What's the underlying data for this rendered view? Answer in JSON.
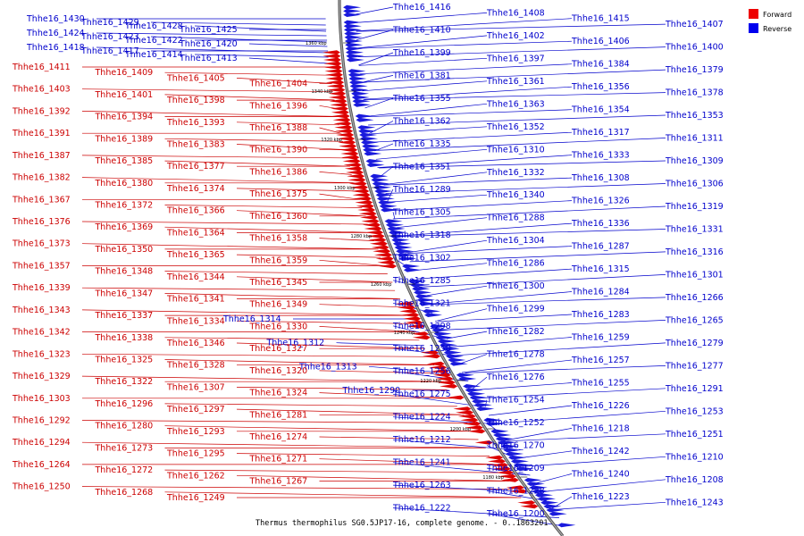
{
  "caption": "Thermus thermophilus SG0.5JP17-16, complete genome. - 0..1863201",
  "legend": [
    {
      "label": "Forward",
      "color": "#ee0000"
    },
    {
      "label": "Reverse",
      "color": "#0000ee"
    }
  ],
  "colors": {
    "forward": "#cc0000",
    "reverse": "#0000cc",
    "backbone": "#888888"
  },
  "ticks": [
    "1360 kbp",
    "1340 kbp",
    "1320 kbp",
    "1300 kbp",
    "1280 kbp",
    "1260 kbp",
    "1240 kbp",
    "1220 kbp",
    "1200 kbp",
    "1180 kbp"
  ],
  "genes_left_blue": [
    "Thhe16_1430",
    "Thhe16_1429",
    "Thhe16_1428",
    "Thhe16_1425",
    "Thhe16_1424",
    "Thhe16_1423",
    "Thhe16_1422",
    "Thhe16_1420",
    "Thhe16_1418",
    "Thhe16_1417",
    "Thhe16_1414",
    "Thhe16_1413",
    "Thhe16_1314",
    "Thhe16_1312",
    "Thhe16_1313",
    "Thhe16_1290"
  ],
  "genes_left_red": [
    "Thhe16_1411",
    "Thhe16_1409",
    "Thhe16_1405",
    "Thhe16_1404",
    "Thhe16_1403",
    "Thhe16_1401",
    "Thhe16_1398",
    "Thhe16_1396",
    "Thhe16_1392",
    "Thhe16_1394",
    "Thhe16_1393",
    "Thhe16_1388",
    "Thhe16_1391",
    "Thhe16_1389",
    "Thhe16_1383",
    "Thhe16_1390",
    "Thhe16_1387",
    "Thhe16_1385",
    "Thhe16_1377",
    "Thhe16_1386",
    "Thhe16_1382",
    "Thhe16_1380",
    "Thhe16_1374",
    "Thhe16_1375",
    "Thhe16_1367",
    "Thhe16_1372",
    "Thhe16_1366",
    "Thhe16_1360",
    "Thhe16_1376",
    "Thhe16_1369",
    "Thhe16_1364",
    "Thhe16_1358",
    "Thhe16_1373",
    "Thhe16_1350",
    "Thhe16_1365",
    "Thhe16_1359",
    "Thhe16_1357",
    "Thhe16_1348",
    "Thhe16_1344",
    "Thhe16_1345",
    "Thhe16_1339",
    "Thhe16_1347",
    "Thhe16_1341",
    "Thhe16_1349",
    "Thhe16_1343",
    "Thhe16_1337",
    "Thhe16_1334",
    "Thhe16_1330",
    "Thhe16_1342",
    "Thhe16_1338",
    "Thhe16_1346",
    "Thhe16_1327",
    "Thhe16_1323",
    "Thhe16_1325",
    "Thhe16_1328",
    "Thhe16_1320",
    "Thhe16_1329",
    "Thhe16_1322",
    "Thhe16_1307",
    "Thhe16_1324",
    "Thhe16_1303",
    "Thhe16_1296",
    "Thhe16_1297",
    "Thhe16_1281",
    "Thhe16_1292",
    "Thhe16_1280",
    "Thhe16_1293",
    "Thhe16_1274",
    "Thhe16_1294",
    "Thhe16_1273",
    "Thhe16_1295",
    "Thhe16_1271",
    "Thhe16_1264",
    "Thhe16_1272",
    "Thhe16_1262",
    "Thhe16_1267",
    "Thhe16_1250",
    "Thhe16_1268",
    "Thhe16_1249"
  ],
  "genes_right_blue": [
    "Thhe16_1416",
    "Thhe16_1408",
    "Thhe16_1415",
    "Thhe16_1407",
    "Thhe16_1410",
    "Thhe16_1402",
    "Thhe16_1406",
    "Thhe16_1400",
    "Thhe16_1399",
    "Thhe16_1397",
    "Thhe16_1384",
    "Thhe16_1379",
    "Thhe16_1381",
    "Thhe16_1361",
    "Thhe16_1356",
    "Thhe16_1378",
    "Thhe16_1355",
    "Thhe16_1363",
    "Thhe16_1354",
    "Thhe16_1353",
    "Thhe16_1362",
    "Thhe16_1352",
    "Thhe16_1317",
    "Thhe16_1311",
    "Thhe16_1335",
    "Thhe16_1310",
    "Thhe16_1333",
    "Thhe16_1309",
    "Thhe16_1351",
    "Thhe16_1332",
    "Thhe16_1308",
    "Thhe16_1306",
    "Thhe16_1289",
    "Thhe16_1340",
    "Thhe16_1326",
    "Thhe16_1319",
    "Thhe16_1305",
    "Thhe16_1288",
    "Thhe16_1336",
    "Thhe16_1331",
    "Thhe16_1318",
    "Thhe16_1304",
    "Thhe16_1287",
    "Thhe16_1316",
    "Thhe16_1302",
    "Thhe16_1286",
    "Thhe16_1315",
    "Thhe16_1301",
    "Thhe16_1285",
    "Thhe16_1300",
    "Thhe16_1284",
    "Thhe16_1266",
    "Thhe16_1321",
    "Thhe16_1299",
    "Thhe16_1283",
    "Thhe16_1265",
    "Thhe16_1298",
    "Thhe16_1282",
    "Thhe16_1259",
    "Thhe16_1279",
    "Thhe16_1258",
    "Thhe16_1278",
    "Thhe16_1257",
    "Thhe16_1277",
    "Thhe16_1256",
    "Thhe16_1276",
    "Thhe16_1255",
    "Thhe16_1291",
    "Thhe16_1275",
    "Thhe16_1254",
    "Thhe16_1226",
    "Thhe16_1253",
    "Thhe16_1224",
    "Thhe16_1252",
    "Thhe16_1218",
    "Thhe16_1251",
    "Thhe16_1212",
    "Thhe16_1270",
    "Thhe16_1242",
    "Thhe16_1210",
    "Thhe16_1241",
    "Thhe16_1209",
    "Thhe16_1240",
    "Thhe16_1208",
    "Thhe16_1263",
    "Thhe16_1228",
    "Thhe16_1223",
    "Thhe16_1243",
    "Thhe16_1222",
    "Thhe16_1200"
  ]
}
